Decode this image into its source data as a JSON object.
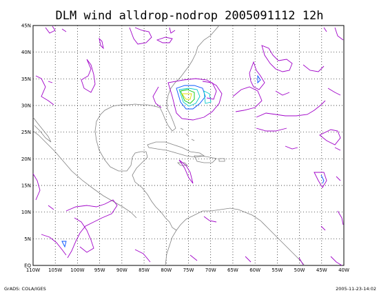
{
  "title": "DLM wind alldrop-nodrop 2005091112 12h",
  "footer_left": "GrADS: COLA/IGES",
  "footer_right": "2005-11-23-14:02",
  "lat_ticks": [
    "45N",
    "40N",
    "35N",
    "30N",
    "25N",
    "20N",
    "15N",
    "10N",
    "5N",
    "EQ"
  ],
  "lon_ticks": [
    "110W",
    "105W",
    "100W",
    "95W",
    "90W",
    "85W",
    "80W",
    "75W",
    "70W",
    "65W",
    "60W",
    "55W",
    "50W",
    "45W",
    "40W"
  ],
  "map_extent": {
    "lon_min": -110,
    "lon_max": -40,
    "lat_min": 0,
    "lat_max": 45
  },
  "colors": {
    "coastline": "#808080",
    "contour_magenta": "#a000c8",
    "contour_blue": "#0050ff",
    "contour_cyan": "#00c8c8",
    "contour_green": "#00c800",
    "contour_yellow": "#e6dc00"
  }
}
